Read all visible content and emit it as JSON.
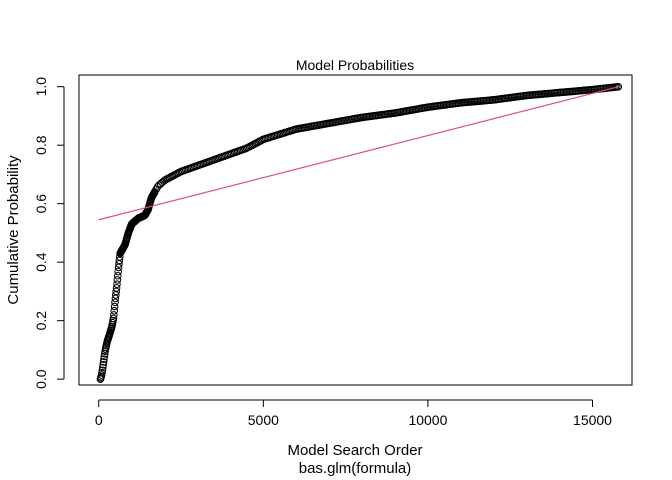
{
  "chart_data": {
    "type": "scatter",
    "title": "Model Probabilities",
    "xlabel": "Model Search Order",
    "sublabel": "bas.glm(formula)",
    "ylabel": "Cumulative Probability",
    "xlim": [
      -600,
      16200
    ],
    "ylim": [
      -0.02,
      1.04
    ],
    "x_ticks": [
      0,
      5000,
      10000,
      15000
    ],
    "x_tick_labels": [
      "0",
      "5000",
      "10000",
      "15000"
    ],
    "y_ticks": [
      0.0,
      0.2,
      0.4,
      0.6,
      0.8,
      1.0
    ],
    "y_tick_labels": [
      "0.0",
      "0.2",
      "0.4",
      "0.6",
      "0.8",
      "1.0"
    ],
    "grid": false,
    "series": [
      {
        "points_color": "#000000",
        "curve": [
          [
            50,
            0.0
          ],
          [
            80,
            0.01
          ],
          [
            110,
            0.03
          ],
          [
            160,
            0.07
          ],
          [
            200,
            0.1
          ],
          [
            260,
            0.13
          ],
          [
            320,
            0.15
          ],
          [
            400,
            0.18
          ],
          [
            450,
            0.21
          ],
          [
            500,
            0.27
          ],
          [
            550,
            0.32
          ],
          [
            600,
            0.38
          ],
          [
            650,
            0.43
          ],
          [
            800,
            0.46
          ],
          [
            900,
            0.5
          ],
          [
            1000,
            0.53
          ],
          [
            1200,
            0.55
          ],
          [
            1400,
            0.56
          ],
          [
            1500,
            0.58
          ],
          [
            1600,
            0.62
          ],
          [
            1800,
            0.66
          ],
          [
            2000,
            0.68
          ],
          [
            2500,
            0.71
          ],
          [
            3000,
            0.73
          ],
          [
            3500,
            0.75
          ],
          [
            4000,
            0.77
          ],
          [
            4500,
            0.79
          ],
          [
            5000,
            0.82
          ],
          [
            6000,
            0.855
          ],
          [
            7000,
            0.875
          ],
          [
            8000,
            0.895
          ],
          [
            9000,
            0.91
          ],
          [
            10000,
            0.93
          ],
          [
            11000,
            0.945
          ],
          [
            12000,
            0.955
          ],
          [
            13000,
            0.97
          ],
          [
            14000,
            0.98
          ],
          [
            15000,
            0.99
          ],
          [
            15800,
            1.0
          ]
        ]
      },
      {
        "type": "line",
        "color": "#DF536B",
        "x": [
          0,
          15800
        ],
        "y": [
          0.545,
          1.0
        ]
      }
    ]
  }
}
